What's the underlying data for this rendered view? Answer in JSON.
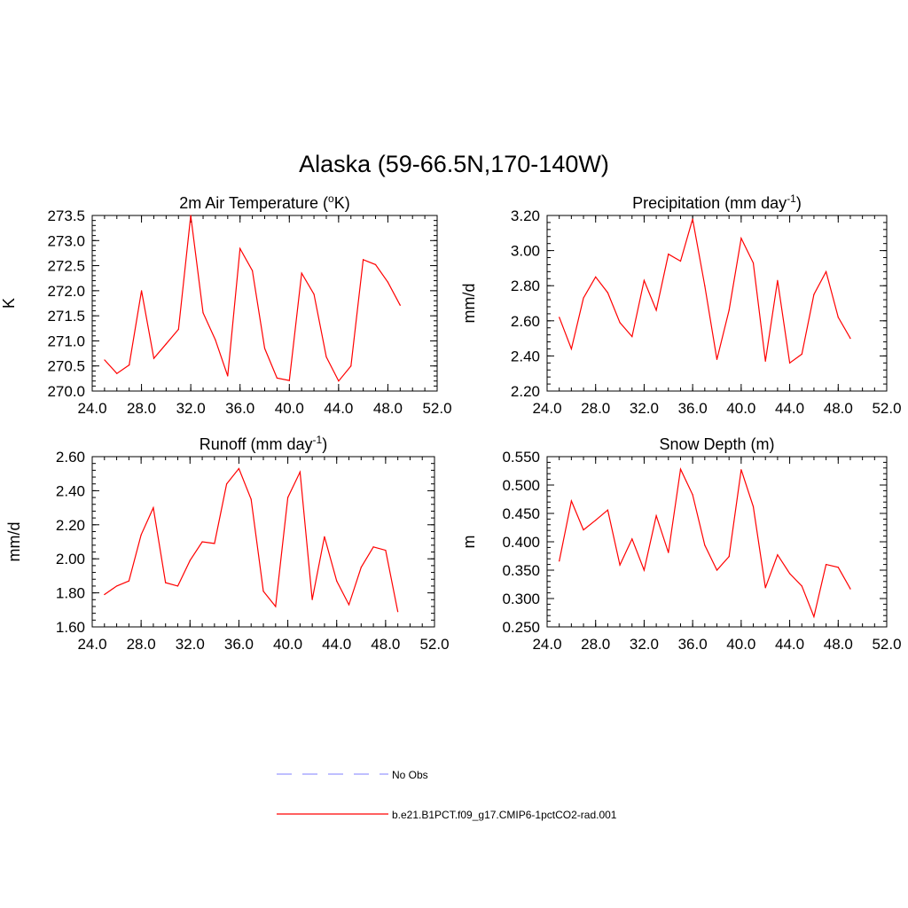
{
  "figure": {
    "title": "Alaska (59-66.5N,170-140W)"
  },
  "colors": {
    "model_line": "#ff0000",
    "obs_line": "#9999ff",
    "axes": "#000000"
  },
  "legend": {
    "placement": "bottom-center",
    "entries": [
      {
        "label": "No Obs",
        "style": "dashed",
        "color": "#9999ff"
      },
      {
        "label": "b.e21.B1PCT.f09_g17.CMIP6-1pctCO2-rad.001",
        "style": "solid",
        "color": "#ff0000"
      }
    ]
  },
  "chart_data": [
    {
      "id": "temp",
      "type": "line",
      "title_main": "2m Air Temperature (",
      "title_sup": "o",
      "title_tail": "K)",
      "xlabel": "",
      "ylabel": "K",
      "xlim": [
        24,
        52
      ],
      "ylim": [
        270.0,
        273.5
      ],
      "xticks": [
        24,
        28,
        32,
        36,
        40,
        44,
        48,
        52
      ],
      "xtick_labels": [
        "24.0",
        "28.0",
        "32.0",
        "36.0",
        "40.0",
        "44.0",
        "48.0",
        "52.0"
      ],
      "yticks": [
        270.0,
        270.5,
        271.0,
        271.5,
        272.0,
        272.5,
        273.0,
        273.5
      ],
      "ytick_labels": [
        "270.0",
        "270.5",
        "271.0",
        "271.5",
        "272.0",
        "272.5",
        "273.0",
        "273.5"
      ],
      "grid": false,
      "series": [
        {
          "x": [
            25,
            26,
            27,
            28,
            29,
            30,
            31,
            32,
            33,
            34,
            35,
            36,
            37,
            38,
            39,
            40,
            41,
            42,
            43,
            44,
            45,
            46,
            47,
            48,
            49
          ],
          "values": [
            270.62,
            270.35,
            270.52,
            272.0,
            270.65,
            270.94,
            271.23,
            273.5,
            271.56,
            271.02,
            270.3,
            272.84,
            272.4,
            270.85,
            270.26,
            270.21,
            272.35,
            271.93,
            270.68,
            270.2,
            270.5,
            272.62,
            272.52,
            272.17,
            271.71
          ]
        }
      ]
    },
    {
      "id": "precip",
      "type": "line",
      "title_main": "Precipitation (mm day",
      "title_sup": "-1",
      "title_tail": ")",
      "xlabel": "",
      "ylabel": "mm/d",
      "xlim": [
        24,
        52
      ],
      "ylim": [
        2.2,
        3.2
      ],
      "xticks": [
        24,
        28,
        32,
        36,
        40,
        44,
        48,
        52
      ],
      "xtick_labels": [
        "24.0",
        "28.0",
        "32.0",
        "36.0",
        "40.0",
        "44.0",
        "48.0",
        "52.0"
      ],
      "yticks": [
        2.2,
        2.4,
        2.6,
        2.8,
        3.0,
        3.2
      ],
      "ytick_labels": [
        "2.20",
        "2.40",
        "2.60",
        "2.80",
        "3.00",
        "3.20"
      ],
      "grid": false,
      "series": [
        {
          "x": [
            25,
            26,
            27,
            28,
            29,
            30,
            31,
            32,
            33,
            34,
            35,
            36,
            37,
            38,
            39,
            40,
            41,
            42,
            43,
            44,
            45,
            46,
            47,
            48,
            49
          ],
          "values": [
            2.62,
            2.44,
            2.73,
            2.85,
            2.76,
            2.59,
            2.51,
            2.83,
            2.66,
            2.98,
            2.94,
            3.18,
            2.8,
            2.38,
            2.66,
            3.07,
            2.93,
            2.37,
            2.83,
            2.36,
            2.41,
            2.75,
            2.88,
            2.62,
            2.5
          ]
        }
      ]
    },
    {
      "id": "runoff",
      "type": "line",
      "title_main": "Runoff (mm day",
      "title_sup": "-1",
      "title_tail": ")",
      "xlabel": "",
      "ylabel": "mm/d",
      "xlim": [
        24,
        52
      ],
      "ylim": [
        1.6,
        2.6
      ],
      "xticks": [
        24,
        28,
        32,
        36,
        40,
        44,
        48,
        52
      ],
      "xtick_labels": [
        "24.0",
        "28.0",
        "32.0",
        "36.0",
        "40.0",
        "44.0",
        "48.0",
        "52.0"
      ],
      "yticks": [
        1.6,
        1.8,
        2.0,
        2.2,
        2.4,
        2.6
      ],
      "ytick_labels": [
        "1.60",
        "1.80",
        "2.00",
        "2.20",
        "2.40",
        "2.60"
      ],
      "grid": false,
      "series": [
        {
          "x": [
            25,
            26,
            27,
            28,
            29,
            30,
            31,
            32,
            33,
            34,
            35,
            36,
            37,
            38,
            39,
            40,
            41,
            42,
            43,
            44,
            45,
            46,
            47,
            48,
            49
          ],
          "values": [
            1.79,
            1.84,
            1.87,
            2.14,
            2.3,
            1.86,
            1.84,
            1.99,
            2.1,
            2.09,
            2.44,
            2.53,
            2.35,
            1.81,
            1.72,
            2.36,
            2.51,
            1.76,
            2.13,
            1.87,
            1.73,
            1.95,
            2.07,
            2.05,
            1.69
          ]
        }
      ]
    },
    {
      "id": "snow",
      "type": "line",
      "title_main": "Snow Depth (m)",
      "title_sup": "",
      "title_tail": "",
      "xlabel": "",
      "ylabel": "m",
      "xlim": [
        24,
        52
      ],
      "ylim": [
        0.25,
        0.55
      ],
      "xticks": [
        24,
        28,
        32,
        36,
        40,
        44,
        48,
        52
      ],
      "xtick_labels": [
        "24.0",
        "28.0",
        "32.0",
        "36.0",
        "40.0",
        "44.0",
        "48.0",
        "52.0"
      ],
      "yticks": [
        0.25,
        0.3,
        0.35,
        0.4,
        0.45,
        0.5,
        0.55
      ],
      "ytick_labels": [
        "0.250",
        "0.300",
        "0.350",
        "0.400",
        "0.450",
        "0.500",
        "0.550"
      ],
      "grid": false,
      "series": [
        {
          "x": [
            25,
            26,
            27,
            28,
            29,
            30,
            31,
            32,
            33,
            34,
            35,
            36,
            37,
            38,
            39,
            40,
            41,
            42,
            43,
            44,
            45,
            46,
            47,
            48,
            49
          ],
          "values": [
            0.366,
            0.472,
            0.421,
            0.438,
            0.456,
            0.359,
            0.405,
            0.35,
            0.446,
            0.381,
            0.528,
            0.483,
            0.394,
            0.35,
            0.374,
            0.527,
            0.462,
            0.319,
            0.377,
            0.344,
            0.322,
            0.268,
            0.36,
            0.355,
            0.317
          ]
        }
      ]
    }
  ]
}
